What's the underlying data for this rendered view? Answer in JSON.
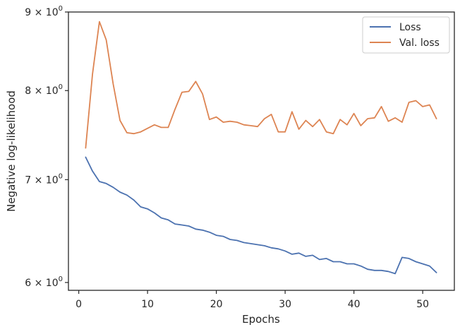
{
  "chart_data": {
    "type": "line",
    "xlabel": "Epochs",
    "ylabel": "Negative log-likelihood",
    "yscale": "log",
    "xlim": [
      -1.5,
      54.6
    ],
    "ylim": [
      5.93,
      9.0
    ],
    "xticks": [
      0,
      10,
      20,
      30,
      40,
      50
    ],
    "yticks": [
      6,
      7,
      8,
      9
    ],
    "ytick_labels": [
      {
        "mantissa": "6",
        "base": "10",
        "exp": "0"
      },
      {
        "mantissa": "7",
        "base": "10",
        "exp": "0"
      },
      {
        "mantissa": "8",
        "base": "10",
        "exp": "0"
      },
      {
        "mantissa": "9",
        "base": "10",
        "exp": "0"
      }
    ],
    "grid": false,
    "legend_position": "top-right",
    "x": [
      1,
      2,
      3,
      4,
      5,
      6,
      7,
      8,
      9,
      10,
      11,
      12,
      13,
      14,
      15,
      16,
      17,
      18,
      19,
      20,
      21,
      22,
      23,
      24,
      25,
      26,
      27,
      28,
      29,
      30,
      31,
      32,
      33,
      34,
      35,
      36,
      37,
      38,
      39,
      40,
      41,
      42,
      43,
      44,
      45,
      46,
      47,
      48,
      49,
      50,
      51,
      52
    ],
    "series": [
      {
        "name": "Loss",
        "color": "#4c72b0",
        "values": [
          7.24,
          7.09,
          6.98,
          6.96,
          6.92,
          6.87,
          6.84,
          6.79,
          6.72,
          6.7,
          6.66,
          6.61,
          6.59,
          6.55,
          6.54,
          6.53,
          6.5,
          6.49,
          6.47,
          6.44,
          6.43,
          6.4,
          6.39,
          6.37,
          6.36,
          6.35,
          6.34,
          6.32,
          6.31,
          6.29,
          6.26,
          6.27,
          6.24,
          6.25,
          6.21,
          6.22,
          6.19,
          6.19,
          6.17,
          6.17,
          6.15,
          6.12,
          6.11,
          6.11,
          6.1,
          6.08,
          6.23,
          6.22,
          6.19,
          6.17,
          6.15,
          6.09
        ]
      },
      {
        "name": "Val. loss",
        "color": "#dd8452",
        "values": [
          7.34,
          8.2,
          8.87,
          8.63,
          8.08,
          7.65,
          7.51,
          7.5,
          7.52,
          7.56,
          7.6,
          7.57,
          7.57,
          7.78,
          7.98,
          7.99,
          8.11,
          7.96,
          7.66,
          7.69,
          7.63,
          7.64,
          7.63,
          7.6,
          7.59,
          7.58,
          7.67,
          7.72,
          7.52,
          7.52,
          7.75,
          7.55,
          7.65,
          7.58,
          7.66,
          7.52,
          7.5,
          7.66,
          7.6,
          7.73,
          7.59,
          7.67,
          7.68,
          7.81,
          7.64,
          7.68,
          7.63,
          7.86,
          7.88,
          7.81,
          7.83,
          7.67
        ]
      }
    ]
  }
}
